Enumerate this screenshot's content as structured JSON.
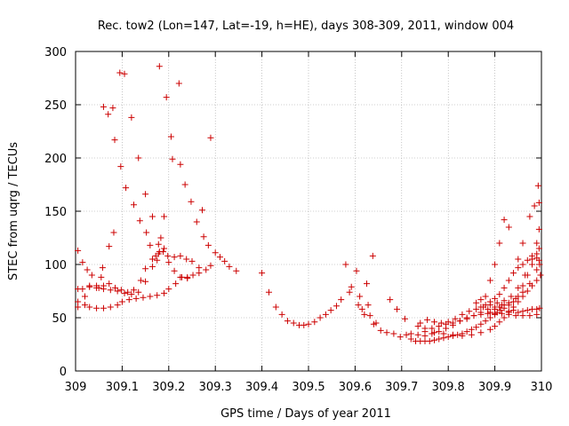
{
  "chart_data": {
    "type": "scatter",
    "title": "Rec. tow2 (Lon=147, Lat=-19, h=HE), days 308-309, 2011, window 004",
    "xlabel": "GPS time / Days of year 2011",
    "ylabel": "STEC from uqrg / TECUs",
    "xlim": [
      309,
      310
    ],
    "ylim": [
      0,
      300
    ],
    "x_ticks": [
      309,
      309.1,
      309.2,
      309.3,
      309.4,
      309.5,
      309.6,
      309.7,
      309.8,
      309.9,
      310
    ],
    "x_tick_labels": [
      "309",
      "309.1",
      "309.2",
      "309.3",
      "309.4",
      "309.5",
      "309.6",
      "309.7",
      "309.8",
      "309.9",
      "310"
    ],
    "y_ticks": [
      0,
      50,
      100,
      150,
      200,
      250,
      300
    ],
    "y_tick_labels": [
      "0",
      "50",
      "100",
      "150",
      "200",
      "250",
      "300"
    ],
    "marker": "+",
    "color": "#cc0000",
    "series": [
      {
        "name": "STEC",
        "points": [
          [
            309.005,
            113
          ],
          [
            309.015,
            102
          ],
          [
            309.025,
            95
          ],
          [
            309.035,
            90
          ],
          [
            309.045,
            80
          ],
          [
            309.055,
            88
          ],
          [
            309.058,
            97
          ],
          [
            309.06,
            248
          ],
          [
            309.07,
            241
          ],
          [
            309.072,
            117
          ],
          [
            309.08,
            247
          ],
          [
            309.082,
            130
          ],
          [
            309.084,
            217
          ],
          [
            309.095,
            280
          ],
          [
            309.097,
            192
          ],
          [
            309.105,
            279
          ],
          [
            309.108,
            172
          ],
          [
            309.12,
            238
          ],
          [
            309.125,
            156
          ],
          [
            309.135,
            200
          ],
          [
            309.138,
            141
          ],
          [
            309.15,
            166
          ],
          [
            309.152,
            130
          ],
          [
            309.16,
            118
          ],
          [
            309.165,
            145
          ],
          [
            309.172,
            108
          ],
          [
            309.178,
            119
          ],
          [
            309.18,
            286
          ],
          [
            309.183,
            125
          ],
          [
            309.19,
            145
          ],
          [
            309.195,
            257
          ],
          [
            309.205,
            220
          ],
          [
            309.208,
            199
          ],
          [
            309.222,
            270
          ],
          [
            309.225,
            194
          ],
          [
            309.235,
            175
          ],
          [
            309.248,
            159
          ],
          [
            309.26,
            140
          ],
          [
            309.272,
            151
          ],
          [
            309.275,
            126
          ],
          [
            309.285,
            118
          ],
          [
            309.29,
            219
          ],
          [
            309.3,
            111
          ],
          [
            309.31,
            107
          ],
          [
            309.32,
            103
          ],
          [
            309.33,
            98
          ],
          [
            309.345,
            94
          ],
          [
            309.4,
            92
          ],
          [
            309.415,
            74
          ],
          [
            309.43,
            60
          ],
          [
            309.443,
            53
          ],
          [
            309.455,
            47
          ],
          [
            309.468,
            45
          ],
          [
            309.48,
            43
          ],
          [
            309.49,
            43
          ],
          [
            309.5,
            44
          ],
          [
            309.513,
            46
          ],
          [
            309.525,
            50
          ],
          [
            309.537,
            53
          ],
          [
            309.548,
            57
          ],
          [
            309.56,
            61
          ],
          [
            309.57,
            67
          ],
          [
            309.58,
            100
          ],
          [
            309.588,
            74
          ],
          [
            309.592,
            79
          ],
          [
            309.603,
            94
          ],
          [
            309.607,
            62
          ],
          [
            309.61,
            70
          ],
          [
            309.615,
            58
          ],
          [
            309.62,
            53
          ],
          [
            309.625,
            82
          ],
          [
            309.628,
            62
          ],
          [
            309.632,
            52
          ],
          [
            309.638,
            108
          ],
          [
            309.64,
            44
          ],
          [
            309.645,
            45
          ],
          [
            309.655,
            38
          ],
          [
            309.668,
            36
          ],
          [
            309.675,
            67
          ],
          [
            309.683,
            35
          ],
          [
            309.69,
            58
          ],
          [
            309.697,
            32
          ],
          [
            309.707,
            49
          ],
          [
            309.71,
            34
          ],
          [
            309.72,
            30
          ],
          [
            309.73,
            28
          ],
          [
            309.74,
            28
          ],
          [
            309.75,
            28
          ],
          [
            309.76,
            28
          ],
          [
            309.77,
            29
          ],
          [
            309.78,
            30
          ],
          [
            309.79,
            31
          ],
          [
            309.8,
            32
          ],
          [
            309.81,
            33
          ],
          [
            309.82,
            34
          ],
          [
            309.83,
            35
          ],
          [
            309.84,
            37
          ],
          [
            309.85,
            39
          ],
          [
            309.86,
            41
          ],
          [
            309.87,
            44
          ],
          [
            309.88,
            47
          ],
          [
            309.89,
            50
          ],
          [
            309.9,
            53
          ],
          [
            309.905,
            55
          ],
          [
            309.912,
            57
          ],
          [
            309.92,
            59
          ],
          [
            309.93,
            62
          ],
          [
            309.94,
            65
          ],
          [
            309.95,
            70
          ],
          [
            309.96,
            80
          ],
          [
            309.97,
            90
          ],
          [
            309.98,
            100
          ],
          [
            309.99,
            110
          ],
          [
            309.995,
            115
          ],
          [
            309.005,
            60
          ],
          [
            309.02,
            62
          ],
          [
            309.03,
            60
          ],
          [
            309.045,
            59
          ],
          [
            309.06,
            59
          ],
          [
            309.075,
            60
          ],
          [
            309.09,
            62
          ],
          [
            309.1,
            65
          ],
          [
            309.115,
            67
          ],
          [
            309.13,
            68
          ],
          [
            309.145,
            69
          ],
          [
            309.16,
            70
          ],
          [
            309.175,
            71
          ],
          [
            309.19,
            73
          ],
          [
            309.2,
            77
          ],
          [
            309.215,
            82
          ],
          [
            309.228,
            88
          ],
          [
            309.24,
            88
          ],
          [
            309.252,
            90
          ],
          [
            309.265,
            92
          ],
          [
            309.28,
            95
          ],
          [
            309.29,
            99
          ],
          [
            309.005,
            65
          ],
          [
            309.02,
            70
          ],
          [
            309.03,
            80
          ],
          [
            309.05,
            78
          ],
          [
            309.06,
            80
          ],
          [
            309.072,
            82
          ],
          [
            309.085,
            78
          ],
          [
            309.098,
            76
          ],
          [
            309.112,
            74
          ],
          [
            309.125,
            76
          ],
          [
            309.14,
            85
          ],
          [
            309.15,
            96
          ],
          [
            309.165,
            105
          ],
          [
            309.178,
            110
          ],
          [
            309.188,
            112
          ],
          [
            309.198,
            108
          ],
          [
            309.212,
            107
          ],
          [
            309.225,
            108
          ],
          [
            309.238,
            105
          ],
          [
            309.25,
            103
          ],
          [
            309.265,
            97
          ],
          [
            309.005,
            77
          ],
          [
            309.015,
            77
          ],
          [
            309.03,
            79
          ],
          [
            309.045,
            78
          ],
          [
            309.06,
            77
          ],
          [
            309.075,
            76
          ],
          [
            309.09,
            75
          ],
          [
            309.105,
            73
          ],
          [
            309.12,
            72
          ],
          [
            309.135,
            74
          ],
          [
            309.15,
            84
          ],
          [
            309.165,
            98
          ],
          [
            309.175,
            104
          ],
          [
            309.18,
            112
          ],
          [
            309.19,
            115
          ],
          [
            309.2,
            102
          ],
          [
            309.212,
            94
          ],
          [
            309.225,
            88
          ],
          [
            309.24,
            87
          ],
          [
            309.72,
            35
          ],
          [
            309.735,
            34
          ],
          [
            309.75,
            33
          ],
          [
            309.765,
            35
          ],
          [
            309.78,
            37
          ],
          [
            309.795,
            40
          ],
          [
            309.81,
            43
          ],
          [
            309.825,
            47
          ],
          [
            309.84,
            50
          ],
          [
            309.855,
            52
          ],
          [
            309.87,
            53
          ],
          [
            309.885,
            54
          ],
          [
            309.9,
            54
          ],
          [
            309.915,
            54
          ],
          [
            309.93,
            53
          ],
          [
            309.945,
            52
          ],
          [
            309.96,
            52
          ],
          [
            309.975,
            52
          ],
          [
            309.99,
            53
          ],
          [
            309.735,
            42
          ],
          [
            309.75,
            40
          ],
          [
            309.765,
            40
          ],
          [
            309.78,
            42
          ],
          [
            309.795,
            44
          ],
          [
            309.81,
            45
          ],
          [
            309.825,
            47
          ],
          [
            309.84,
            49
          ],
          [
            309.855,
            52
          ],
          [
            309.87,
            55
          ],
          [
            309.885,
            58
          ],
          [
            309.9,
            60
          ],
          [
            309.915,
            62
          ],
          [
            309.93,
            64
          ],
          [
            309.945,
            68
          ],
          [
            309.96,
            74
          ],
          [
            309.975,
            82
          ],
          [
            309.99,
            95
          ],
          [
            309.995,
            104
          ],
          [
            309.74,
            45
          ],
          [
            309.755,
            48
          ],
          [
            309.77,
            46
          ],
          [
            309.785,
            45
          ],
          [
            309.8,
            46
          ],
          [
            309.815,
            49
          ],
          [
            309.83,
            53
          ],
          [
            309.845,
            56
          ],
          [
            309.86,
            58
          ],
          [
            309.875,
            60
          ],
          [
            309.89,
            62
          ],
          [
            309.905,
            64
          ],
          [
            309.92,
            66
          ],
          [
            309.935,
            70
          ],
          [
            309.95,
            78
          ],
          [
            309.965,
            90
          ],
          [
            309.98,
            105
          ],
          [
            309.99,
            120
          ],
          [
            309.995,
            133
          ],
          [
            309.75,
            37
          ],
          [
            309.77,
            36
          ],
          [
            309.79,
            35
          ],
          [
            309.81,
            34
          ],
          [
            309.83,
            33
          ],
          [
            309.85,
            34
          ],
          [
            309.87,
            36
          ],
          [
            309.89,
            39
          ],
          [
            309.9,
            42
          ],
          [
            309.91,
            46
          ],
          [
            309.92,
            50
          ],
          [
            309.93,
            55
          ],
          [
            309.94,
            60
          ],
          [
            309.95,
            65
          ],
          [
            309.96,
            70
          ],
          [
            309.97,
            75
          ],
          [
            309.98,
            80
          ],
          [
            309.99,
            85
          ],
          [
            309.998,
            90
          ],
          [
            309.86,
            64
          ],
          [
            309.87,
            67
          ],
          [
            309.88,
            70
          ],
          [
            309.89,
            85
          ],
          [
            309.9,
            100
          ],
          [
            309.91,
            120
          ],
          [
            309.92,
            142
          ],
          [
            309.93,
            135
          ],
          [
            309.95,
            105
          ],
          [
            309.96,
            120
          ],
          [
            309.975,
            145
          ],
          [
            309.985,
            155
          ],
          [
            309.993,
            174
          ],
          [
            309.995,
            158
          ],
          [
            309.87,
            60
          ],
          [
            309.88,
            62
          ],
          [
            309.89,
            65
          ],
          [
            309.9,
            68
          ],
          [
            309.91,
            72
          ],
          [
            309.92,
            78
          ],
          [
            309.93,
            85
          ],
          [
            309.94,
            92
          ],
          [
            309.95,
            97
          ],
          [
            309.96,
            100
          ],
          [
            309.97,
            104
          ],
          [
            309.98,
            108
          ],
          [
            309.99,
            106
          ],
          [
            309.996,
            100
          ],
          [
            309.89,
            55
          ],
          [
            309.9,
            58
          ],
          [
            309.91,
            60
          ],
          [
            309.92,
            62
          ],
          [
            309.93,
            56
          ],
          [
            309.94,
            57
          ],
          [
            309.95,
            55
          ],
          [
            309.96,
            56
          ],
          [
            309.97,
            57
          ],
          [
            309.98,
            58
          ],
          [
            309.99,
            58
          ],
          [
            309.996,
            59
          ]
        ]
      }
    ]
  }
}
